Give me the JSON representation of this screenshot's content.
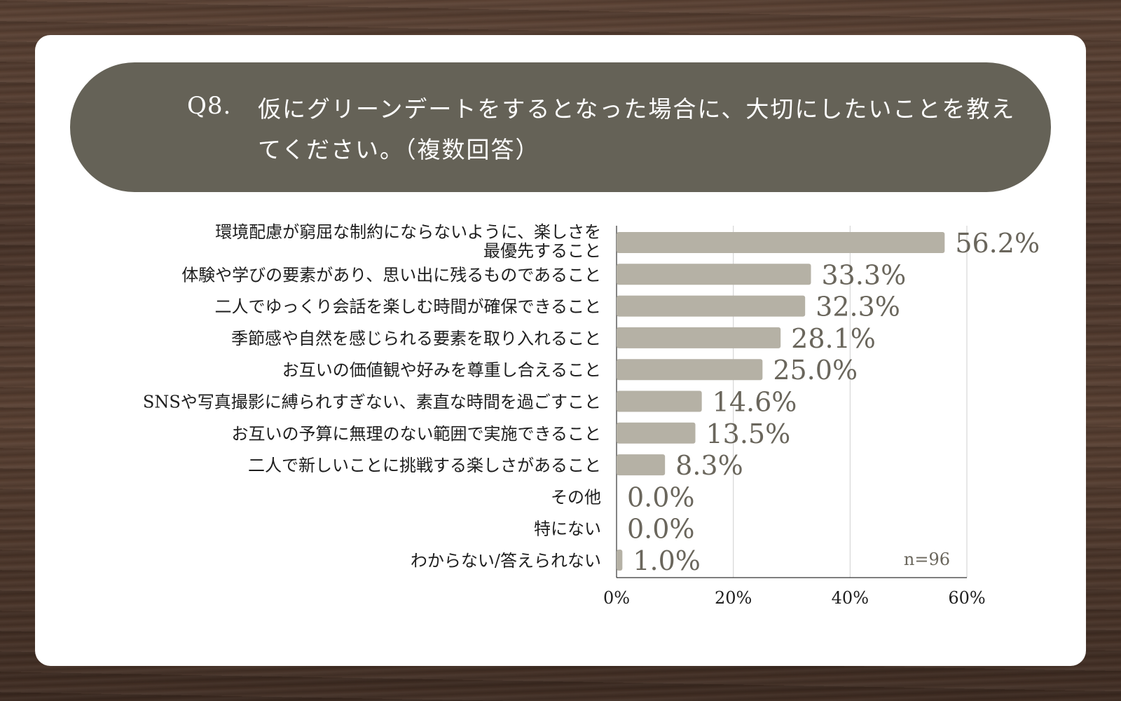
{
  "question": {
    "number": "Q8.",
    "text": "仮にグリーンデートをするとなった場合に、大切にしたいことを教えてください。（複数回答）"
  },
  "chart_data": {
    "type": "bar",
    "orientation": "horizontal",
    "categories": [
      [
        "環境配慮が窮屈な制約にならないように、楽しさを",
        "最優先すること"
      ],
      [
        "体験や学びの要素があり、思い出に残るものであること"
      ],
      [
        "二人でゆっくり会話を楽しむ時間が確保できること"
      ],
      [
        "季節感や自然を感じられる要素を取り入れること"
      ],
      [
        "お互いの価値観や好みを尊重し合えること"
      ],
      [
        "SNSや写真撮影に縛られすぎない、素直な時間を過ごすこと"
      ],
      [
        "お互いの予算に無理のない範囲で実施できること"
      ],
      [
        "二人で新しいことに挑戦する楽しさがあること"
      ],
      [
        "その他"
      ],
      [
        "特にない"
      ],
      [
        "わからない/答えられない"
      ]
    ],
    "values": [
      56.2,
      33.3,
      32.3,
      28.1,
      25.0,
      14.6,
      13.5,
      8.3,
      0.0,
      0.0,
      1.0
    ],
    "value_labels": [
      "56.2%",
      "33.3%",
      "32.3%",
      "28.1%",
      "25.0%",
      "14.6%",
      "13.5%",
      "8.3%",
      "0.0%",
      "0.0%",
      "1.0%"
    ],
    "x_ticks": [
      0,
      20,
      40,
      60
    ],
    "x_tick_labels": [
      "0%",
      "20%",
      "40%",
      "60%"
    ],
    "xlim": [
      0,
      60
    ],
    "grid": true,
    "annotation": "n=96",
    "colors": {
      "bar": "#b5b1a5",
      "value_label": "#6a665c",
      "header_bg": "#656257",
      "text": "#1e1e1e",
      "grid": "#cfcfcf"
    }
  }
}
